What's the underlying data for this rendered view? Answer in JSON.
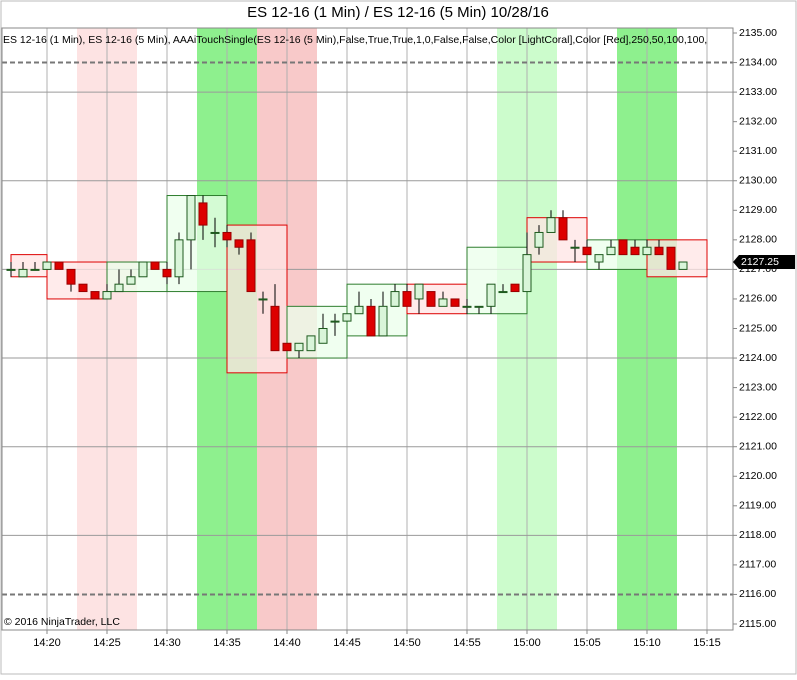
{
  "chart_data": {
    "type": "candlestick",
    "title": "ES 12-16 (1 Min) / ES 12-16 (5 Min)  10/28/16",
    "indicator_label": "ES 12-16 (1 Min), ES 12-16 (5 Min), AAAiTouchSingle(ES 12-16 (5 Min),False,True,True,1,0,False,False,Color [LightCoral],Color [Red],250,50,100,100,",
    "copyright": "© 2016 NinjaTrader, LLC",
    "last_price": {
      "value": 2127.25,
      "label": "2127.25"
    },
    "categories": [
      null,
      null,
      null,
      "14:20",
      null,
      null,
      null,
      null,
      "14:25",
      null,
      null,
      null,
      null,
      "14:30",
      null,
      null,
      null,
      null,
      "14:35",
      null,
      null,
      null,
      null,
      "14:40",
      null,
      null,
      null,
      null,
      "14:45",
      null,
      null,
      null,
      null,
      "14:50",
      null,
      null,
      null,
      null,
      "14:55",
      null,
      null,
      null,
      null,
      "15:00",
      null,
      null,
      null,
      null,
      "15:05",
      null,
      null,
      null,
      null,
      "15:10",
      null,
      null,
      null,
      null,
      "15:15",
      null
    ],
    "ohlc": {
      "open": [
        2127,
        2126.75,
        2127,
        2127,
        2127.25,
        2127,
        2126.5,
        2126.25,
        2126,
        2126.25,
        2126.5,
        2126.75,
        2127.25,
        2127,
        2126.75,
        2128,
        2129.25,
        2128.25,
        2128.25,
        2128,
        2128,
        2126,
        2125.75,
        2124.5,
        2124.25,
        2124.25,
        2124.5,
        2125.25,
        2125.25,
        2125.5,
        2125.75,
        2124.75,
        2125.75,
        2126.25,
        2126,
        2126.25,
        2125.75,
        2126,
        2125.75,
        2125.75,
        2125.75,
        2126.25,
        2126.5,
        2126.25,
        2127.75,
        2128.25,
        2128.75,
        2127.75,
        2127.75,
        2127.25,
        2127.5,
        2128,
        2127.75,
        2127.5,
        2127.75,
        2127.75,
        2127,
        null,
        null,
        null
      ],
      "high": [
        2127.25,
        2127.25,
        2127.25,
        2127.25,
        2127.25,
        2127,
        2126.5,
        2126.25,
        2126.5,
        2127,
        2127,
        2127.25,
        2127.25,
        2127.25,
        2128.25,
        2129.5,
        2129.5,
        2128.75,
        2128.5,
        2128,
        2128.25,
        2126.25,
        2126.5,
        2124.5,
        2124.5,
        2124.75,
        2125.5,
        2125.5,
        2125.5,
        2126.25,
        2126,
        2126.25,
        2126.5,
        2126.5,
        2126.5,
        2126.25,
        2126.25,
        2126,
        2126,
        2125.75,
        2126.5,
        2126.5,
        2126.5,
        2128.25,
        2128.5,
        2129,
        2129,
        2128,
        2128,
        2127.5,
        2128,
        2128,
        2128,
        2128,
        2128,
        2127.75,
        2127.25,
        null,
        null,
        null
      ],
      "low": [
        2126.75,
        2126.75,
        2127,
        2127,
        2127,
        2126.25,
        2126.25,
        2126,
        2126,
        2126.25,
        2126.5,
        2126.75,
        2127,
        2126.5,
        2126.5,
        2127,
        2128,
        2127.75,
        2127.75,
        2127.5,
        2126.25,
        2125.5,
        2124.25,
        2124.25,
        2124,
        2124.25,
        2124.5,
        2124.75,
        2125.25,
        2125.5,
        2124.75,
        2124.75,
        2125.75,
        2125.75,
        2125.5,
        2125.75,
        2125.75,
        2125.75,
        2125.5,
        2125.5,
        2125.5,
        2126.25,
        2126.25,
        2126.25,
        2127.5,
        2128.25,
        2128,
        2127.25,
        2127.5,
        2127,
        2127.5,
        2127.5,
        2127.5,
        2127.5,
        2127.5,
        2127,
        2127,
        null,
        null,
        null
      ],
      "close": [
        2127,
        2127,
        2127,
        2127.25,
        2127,
        2126.5,
        2126.25,
        2126,
        2126.25,
        2126.5,
        2126.75,
        2127.25,
        2127,
        2126.75,
        2128,
        2129.5,
        2128.5,
        2128.25,
        2128,
        2127.75,
        2126.25,
        2126,
        2124.25,
        2124.25,
        2124.5,
        2124.75,
        2125,
        2125.25,
        2125.5,
        2125.75,
        2124.75,
        2125.75,
        2126.25,
        2125.75,
        2126.5,
        2125.75,
        2126,
        2125.75,
        2125.75,
        2125.75,
        2126.5,
        2126.25,
        2126.25,
        2127.5,
        2128.25,
        2128.75,
        2128,
        2127.75,
        2127.5,
        2127.5,
        2127.75,
        2127.5,
        2127.5,
        2127.75,
        2127.5,
        2127,
        2127.25,
        null,
        null,
        null
      ]
    },
    "five_min": {
      "open": [
        2127.5,
        2127.25,
        2126.25,
        2126.25,
        2128.5,
        2124,
        2124.75,
        2126.5,
        2125.5,
        2128.75,
        2127,
        2128
      ],
      "close": [
        2126.75,
        2126,
        2127.25,
        2129.5,
        2123.5,
        2125.75,
        2126.5,
        2125.5,
        2127.75,
        2127.25,
        2128,
        2126.75
      ]
    },
    "highlights": [
      {
        "color": "#fde3e3",
        "from": 6,
        "to": 10
      },
      {
        "color": "#8ef08e",
        "from": 16,
        "to": 20
      },
      {
        "color": "#f8c9c9",
        "from": 21,
        "to": 25
      },
      {
        "color": "#ccfccc",
        "from": 41,
        "to": 45
      },
      {
        "color": "#8ef08e",
        "from": 51,
        "to": 55
      }
    ],
    "ylim": [
      2115,
      2135
    ],
    "yticks": [
      {
        "value": 2115,
        "label": "2115.00"
      },
      {
        "value": 2116,
        "label": "2116.00"
      },
      {
        "value": 2117,
        "label": "2117.00"
      },
      {
        "value": 2118,
        "label": "2118.00"
      },
      {
        "value": 2119,
        "label": "2119.00"
      },
      {
        "value": 2120,
        "label": "2120.00"
      },
      {
        "value": 2121,
        "label": "2121.00"
      },
      {
        "value": 2122,
        "label": "2122.00"
      },
      {
        "value": 2123,
        "label": "2123.00"
      },
      {
        "value": 2124,
        "label": "2124.00"
      },
      {
        "value": 2125,
        "label": "2125.00"
      },
      {
        "value": 2126,
        "label": "2126.00"
      },
      {
        "value": 2127,
        "label": "2127.00"
      },
      {
        "value": 2128,
        "label": "2128.00"
      },
      {
        "value": 2129,
        "label": "2129.00"
      },
      {
        "value": 2130,
        "label": "2130.00"
      },
      {
        "value": 2131,
        "label": "2131.00"
      },
      {
        "value": 2132,
        "label": "2132.00"
      },
      {
        "value": 2133,
        "label": "2133.00"
      },
      {
        "value": 2134,
        "label": "2134.00"
      },
      {
        "value": 2135,
        "label": "2135.00"
      }
    ],
    "hlines": [
      2133,
      2130,
      2127,
      2124,
      2121,
      2118
    ],
    "dashed_lines": [
      2134,
      2116
    ],
    "up_color": "#2e7d2e",
    "down_color": "#dd0000"
  }
}
